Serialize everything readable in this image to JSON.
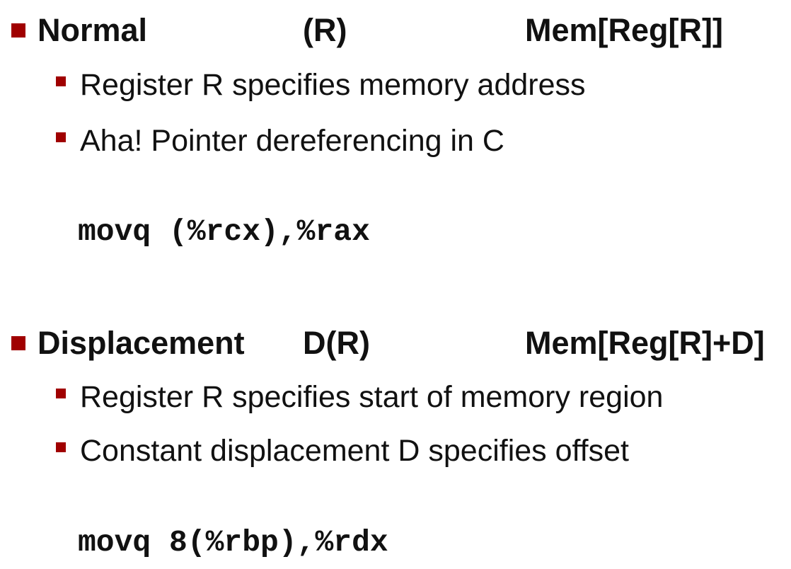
{
  "colors": {
    "bullet": "#a00000",
    "text": "#111111",
    "background": "#ffffff"
  },
  "sections": [
    {
      "name": "Normal",
      "syntax": "(R)",
      "semantics": "Mem[Reg[R]]",
      "bullets": [
        "Register R specifies memory address",
        "Aha! Pointer dereferencing in C"
      ],
      "code": "movq (%rcx),%rax"
    },
    {
      "name": "Displacement",
      "syntax": "D(R)",
      "semantics": "Mem[Reg[R]+D]",
      "bullets": [
        "Register R specifies start of memory region",
        "Constant displacement D specifies offset"
      ],
      "code": "movq 8(%rbp),%rdx"
    }
  ]
}
